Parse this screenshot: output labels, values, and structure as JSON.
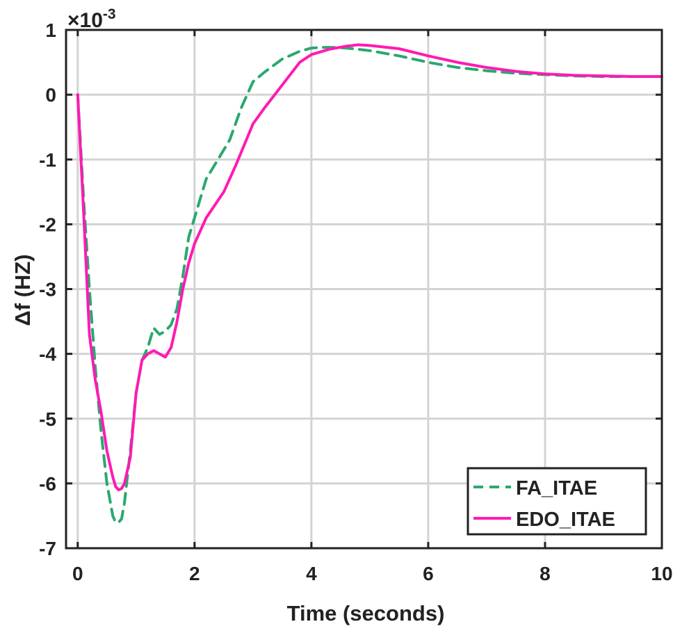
{
  "chart_data": {
    "type": "line",
    "title": "",
    "xlabel": "Time (seconds)",
    "ylabel": "Δf (HZ)",
    "xlim": [
      -0.2,
      10
    ],
    "ylim": [
      -7,
      1
    ],
    "x_ticks": [
      0,
      2,
      4,
      6,
      8,
      10
    ],
    "x_tick_labels": [
      "0",
      "2",
      "4",
      "6",
      "8",
      "10"
    ],
    "y_ticks": [
      1,
      0,
      -1,
      -2,
      -3,
      -4,
      -5,
      -6,
      -7
    ],
    "y_tick_labels": [
      "1",
      "0",
      "-1",
      "-2",
      "-3",
      "-4",
      "-5",
      "-6",
      "-7"
    ],
    "y_multiplier": {
      "base": "×10",
      "exponent": "-3"
    },
    "grid": true,
    "legend_position": "bottom-right",
    "colors": {
      "FA_ITAE": "#2aa86f",
      "EDO_ITAE": "#ff1ab3",
      "axis": "#222222",
      "grid": "#d3d3d3"
    },
    "series": [
      {
        "name": "FA_ITAE",
        "style": "dashed",
        "x": [
          0,
          0.1,
          0.2,
          0.3,
          0.4,
          0.5,
          0.6,
          0.65,
          0.7,
          0.75,
          0.8,
          0.9,
          1.0,
          1.1,
          1.2,
          1.3,
          1.4,
          1.5,
          1.6,
          1.7,
          1.8,
          1.9,
          2.0,
          2.1,
          2.2,
          2.4,
          2.6,
          2.8,
          3.0,
          3.2,
          3.5,
          3.8,
          4.0,
          4.2,
          4.4,
          4.6,
          4.8,
          5.0,
          5.5,
          6.0,
          6.5,
          7.0,
          7.5,
          8.0,
          8.5,
          9.0,
          9.5,
          10.0
        ],
        "values": [
          0,
          -1.6,
          -3.0,
          -4.2,
          -5.2,
          -6.0,
          -6.5,
          -6.6,
          -6.6,
          -6.55,
          -6.3,
          -5.5,
          -4.6,
          -4.1,
          -3.9,
          -3.6,
          -3.7,
          -3.65,
          -3.55,
          -3.3,
          -2.8,
          -2.2,
          -1.9,
          -1.6,
          -1.3,
          -1.0,
          -0.7,
          -0.2,
          0.2,
          0.35,
          0.55,
          0.67,
          0.72,
          0.73,
          0.73,
          0.72,
          0.7,
          0.68,
          0.6,
          0.5,
          0.42,
          0.37,
          0.33,
          0.31,
          0.29,
          0.28,
          0.28,
          0.28
        ]
      },
      {
        "name": "EDO_ITAE",
        "style": "solid",
        "x": [
          0,
          0.1,
          0.2,
          0.3,
          0.4,
          0.5,
          0.6,
          0.65,
          0.7,
          0.75,
          0.8,
          0.9,
          1.0,
          1.1,
          1.2,
          1.3,
          1.4,
          1.5,
          1.6,
          1.7,
          1.8,
          1.9,
          2.0,
          2.2,
          2.5,
          2.7,
          3.0,
          3.2,
          3.5,
          3.8,
          4.0,
          4.3,
          4.6,
          4.8,
          5.0,
          5.5,
          6.0,
          6.5,
          7.0,
          7.5,
          8.0,
          8.5,
          9.0,
          9.5,
          10.0
        ],
        "values": [
          0,
          -1.8,
          -3.7,
          -4.4,
          -4.9,
          -5.5,
          -5.9,
          -6.05,
          -6.1,
          -6.08,
          -6.0,
          -5.6,
          -4.6,
          -4.1,
          -4.0,
          -3.95,
          -4.0,
          -4.05,
          -3.9,
          -3.5,
          -3.0,
          -2.6,
          -2.3,
          -1.9,
          -1.5,
          -1.1,
          -0.45,
          -0.2,
          0.15,
          0.5,
          0.62,
          0.7,
          0.75,
          0.77,
          0.76,
          0.71,
          0.6,
          0.5,
          0.42,
          0.36,
          0.32,
          0.3,
          0.29,
          0.28,
          0.28
        ]
      }
    ]
  }
}
